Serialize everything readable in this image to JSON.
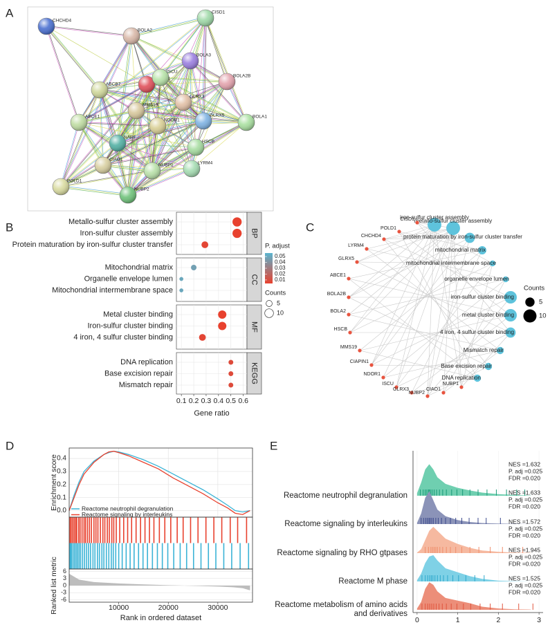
{
  "panel_labels": [
    "A",
    "B",
    "C",
    "D",
    "E"
  ],
  "network": {
    "nodes": [
      {
        "label": "CHCHD4",
        "color": "#4a6fd0"
      },
      {
        "label": "BOLA2",
        "color": "#d9b8a8"
      },
      {
        "label": "CISD1",
        "color": "#9fd9a8"
      },
      {
        "label": "BOLA3",
        "color": "#9b7fe0"
      },
      {
        "label": "BOLA2B",
        "color": "#e3a3ad"
      },
      {
        "label": "ABCB7",
        "color": "#cfd79a"
      },
      {
        "label": "CIAPIN1",
        "color": "#e0505a"
      },
      {
        "label": "ISCU",
        "color": "#b7e3a8"
      },
      {
        "label": "GLRX3",
        "color": "#e2c0a6"
      },
      {
        "label": "MMS19",
        "color": "#d7c79c"
      },
      {
        "label": "BOLA1",
        "color": "#a9e0a0"
      },
      {
        "label": "GLRX5",
        "color": "#7fb3e3"
      },
      {
        "label": "NDOR1",
        "color": "#d9cf95"
      },
      {
        "label": "ABCE1",
        "color": "#bfdca2"
      },
      {
        "label": "NARF",
        "color": "#52b0a3"
      },
      {
        "label": "HSCB",
        "color": "#a6dca0"
      },
      {
        "label": "CIAO1",
        "color": "#d8cfa0"
      },
      {
        "label": "NUBP1",
        "color": "#b9e1a9"
      },
      {
        "label": "LYRM4",
        "color": "#a5dcb2"
      },
      {
        "label": "POLD1",
        "color": "#d9dba0"
      },
      {
        "label": "NUBP2",
        "color": "#6fc27a"
      }
    ]
  },
  "cnet": {
    "genes": [
      "CISD1",
      "POLD1",
      "CHCHD4",
      "LYRM4",
      "GLRX5",
      "ABCE1",
      "BOLA2B",
      "BOLA2",
      "HSCB",
      "MMS19",
      "CIAPIN1",
      "NDOR1",
      "ISCU",
      "GLRX3",
      "NUBP2",
      "CIAO1",
      "NUBP1"
    ],
    "terms": [
      {
        "label": "iron-sulfur cluster assembly",
        "count": 11
      },
      {
        "label": "metallo-sulfur cluster assembly",
        "count": 11
      },
      {
        "label": "protein maturation by iron-sulfur cluster transfer",
        "count": 6
      },
      {
        "label": "mitochondrial matrix",
        "count": 4
      },
      {
        "label": "mitochondrial intermembrane space",
        "count": 2
      },
      {
        "label": "organelle envelope lumen",
        "count": 2
      },
      {
        "label": "iron-sulfur cluster binding",
        "count": 9
      },
      {
        "label": "metal cluster binding",
        "count": 9
      },
      {
        "label": "4 iron, 4 sulfur cluster binding",
        "count": 6
      },
      {
        "label": "Mismatch repair",
        "count": 3
      },
      {
        "label": "Base excision repair",
        "count": 3
      },
      {
        "label": "DNA replication",
        "count": 3
      }
    ],
    "gene_color": "#e8543f",
    "term_color": "#5ec3dc",
    "legend_title": "Counts",
    "legend_sizes": [
      5,
      10
    ]
  },
  "chart_data": [
    {
      "type": "dotplot",
      "x_label": "Gene ratio",
      "xlim": [
        0.06,
        0.63
      ],
      "xticks": [
        0.1,
        0.2,
        0.3,
        0.4,
        0.5,
        0.6
      ],
      "grid": true,
      "groups": [
        {
          "name": "BP",
          "categories": [
            "Metallo-sulfur cluster assembly",
            "Iron-sulfur cluster assembly",
            "Protein maturation by iron-sulfur cluster transfer"
          ],
          "values": [
            0.55,
            0.55,
            0.29
          ],
          "counts": [
            11,
            11,
            6
          ],
          "p_adjust": [
            0.004,
            0.004,
            0.006
          ]
        },
        {
          "name": "CC",
          "categories": [
            "Mitochondrial matrix",
            "Organelle envelope lumen",
            "Mitochondrial intermembrane space"
          ],
          "values": [
            0.2,
            0.1,
            0.1
          ],
          "counts": [
            4,
            2,
            2
          ],
          "p_adjust": [
            0.047,
            0.05,
            0.05
          ]
        },
        {
          "name": "MF",
          "categories": [
            "Metal cluster binding",
            "Iron-sulfur cluster binding",
            "4 iron, 4 sulfur cluster binding"
          ],
          "values": [
            0.43,
            0.43,
            0.27
          ],
          "counts": [
            9,
            9,
            6
          ],
          "p_adjust": [
            0.004,
            0.004,
            0.006
          ]
        },
        {
          "name": "KEGG",
          "categories": [
            "DNA replication",
            "Base excision repair",
            "Mismatch repair"
          ],
          "values": [
            0.5,
            0.5,
            0.5
          ],
          "counts": [
            3,
            3,
            3
          ],
          "p_adjust": [
            0.008,
            0.008,
            0.008
          ]
        }
      ],
      "color_legend": {
        "title": "P. adjust",
        "ticks": [
          0.05,
          0.04,
          0.03,
          0.02,
          0.01
        ],
        "clim": [
          0.004,
          0.056
        ],
        "colors": [
          "#e8412e",
          "#5ab4cf"
        ]
      },
      "size_legend": {
        "title": "Counts",
        "values": [
          5,
          10
        ]
      }
    },
    {
      "type": "gsea",
      "x_label": "Rank in ordered dataset",
      "y_label": "Enrichment score",
      "legend": "bottom-left",
      "grid": true,
      "x": [
        0,
        1000,
        2000,
        3000,
        5000,
        7000,
        8000,
        9000,
        10000,
        12000,
        15000,
        18000,
        21000,
        24000,
        27000,
        30000,
        32000,
        33500,
        35000,
        36500
      ],
      "series": [
        {
          "name": "Reactome neutrophil degranulation",
          "color": "#3bb3d6",
          "values": [
            0,
            0.12,
            0.22,
            0.3,
            0.38,
            0.43,
            0.445,
            0.455,
            0.45,
            0.43,
            0.39,
            0.34,
            0.28,
            0.22,
            0.16,
            0.09,
            0.04,
            0.0,
            -0.01,
            0.0
          ],
          "hits": [
            100,
            300,
            500,
            800,
            1100,
            1400,
            1700,
            2000,
            2300,
            2700,
            3100,
            3500,
            3900,
            4300,
            4800,
            5200,
            5700,
            6100,
            6600,
            7000,
            7500,
            8000,
            8500,
            8900,
            9400,
            10000,
            10700,
            11500,
            12300,
            13100,
            14000,
            14900,
            15800,
            16800,
            17800,
            18800,
            19900,
            21100,
            22400,
            23700,
            25100,
            26600,
            28100,
            29600,
            31200,
            32800,
            34500,
            36200
          ]
        },
        {
          "name": "Reactome signaling by interleukins",
          "color": "#e8412e",
          "values": [
            0,
            0.1,
            0.2,
            0.28,
            0.37,
            0.43,
            0.45,
            0.455,
            0.445,
            0.42,
            0.37,
            0.32,
            0.25,
            0.19,
            0.13,
            0.06,
            0.02,
            -0.02,
            -0.03,
            0.0
          ],
          "hits": [
            150,
            400,
            700,
            1000,
            1300,
            1500,
            1900,
            2200,
            2600,
            3000,
            3300,
            3700,
            4100,
            4500,
            5000,
            5400,
            5800,
            6300,
            6800,
            7200,
            7700,
            8100,
            8600,
            9000,
            9500,
            10200,
            11000,
            11800,
            12600,
            13500,
            14400,
            15300,
            16200,
            17100,
            18200,
            19300,
            20500,
            21800,
            23000,
            24500,
            26000,
            27600,
            29200,
            30800,
            32500,
            34000,
            35800
          ]
        }
      ],
      "xlim": [
        0,
        37000
      ],
      "xticks": [
        10000,
        20000,
        30000
      ],
      "ylim": [
        -0.05,
        0.48
      ],
      "yticks": [
        {
          "value": 0,
          "label": "0.0"
        },
        0.1,
        0.2,
        0.3,
        0.4
      ],
      "metric": {
        "y_label": "Ranked list metric",
        "color": "#bdbdbd",
        "x": [
          0,
          2000,
          5000,
          10000,
          15000,
          20000,
          25000,
          30000,
          33000,
          35000,
          36500
        ],
        "values": [
          5,
          2.5,
          1.5,
          0.9,
          0.5,
          0.2,
          -0.1,
          -0.4,
          -0.7,
          -1.1,
          -2
        ],
        "ylim": [
          -7,
          7
        ],
        "yticks": [
          -6,
          -3,
          0,
          3,
          6
        ]
      }
    },
    {
      "type": "ridge",
      "xlim": [
        -0.1,
        3.1
      ],
      "xticks": [
        0,
        1,
        2,
        3
      ],
      "categories": [
        "Reactome neutrophil degranulation",
        "Reactome signaling by interleukins",
        "Reactome signaling by RHO gtpases",
        "Reactome M phase",
        "Reactome metabolism of amino acids and derivatives"
      ],
      "annotations": [
        [
          "NES =1.632",
          "P. adj =0.025",
          "FDR =0.020"
        ],
        [
          "NES =1.633",
          "P. adj =0.025",
          "FDR =0.020"
        ],
        [
          "NES =1.572",
          "P. adj =0.025",
          "FDR =0.020"
        ],
        [
          "NES =1.945",
          "P. adj =0.025",
          "FDR =0.020"
        ],
        [
          "NES =1.525",
          "P. adj =0.025",
          "FDR =0.020"
        ]
      ],
      "density_x": [
        0,
        0.1,
        0.2,
        0.3,
        0.4,
        0.5,
        0.7,
        1.0,
        1.3,
        1.6,
        2.0,
        2.4,
        2.8
      ],
      "ridges": [
        {
          "color": "#6fcfb0",
          "rug_color": "#1a9a78",
          "density": [
            0.1,
            0.5,
            1.0,
            1.2,
            1.0,
            0.7,
            0.45,
            0.3,
            0.2,
            0.12,
            0.06,
            0.03,
            0.01
          ],
          "rug": [
            0.08,
            0.15,
            0.2,
            0.24,
            0.28,
            0.3,
            0.33,
            0.37,
            0.42,
            0.48,
            0.55,
            0.63,
            0.72,
            0.85,
            0.98,
            1.12,
            1.3,
            1.5,
            1.72,
            1.95,
            2.2,
            2.45,
            2.65
          ]
        },
        {
          "color": "#8b93b8",
          "rug_color": "#3c4a8c",
          "density": [
            0.05,
            0.4,
            1.0,
            1.25,
            0.9,
            0.55,
            0.3,
            0.15,
            0.08,
            0.04,
            0.02,
            0.01,
            0
          ],
          "rug": [
            0.1,
            0.16,
            0.21,
            0.25,
            0.29,
            0.32,
            0.36,
            0.4,
            0.46,
            0.52,
            0.6,
            0.7,
            0.82,
            0.95,
            1.1,
            1.28,
            1.5,
            1.7,
            2.05
          ]
        },
        {
          "color": "#f6b9a0",
          "rug_color": "#ef8e6c",
          "density": [
            0.02,
            0.15,
            0.5,
            0.85,
            1.0,
            0.85,
            0.55,
            0.35,
            0.2,
            0.1,
            0.05,
            0.02,
            0.01
          ],
          "rug": [
            0.2,
            0.28,
            0.34,
            0.38,
            0.42,
            0.46,
            0.5,
            0.56,
            0.63,
            0.72,
            0.82,
            0.95,
            1.1,
            1.3,
            1.52,
            1.8,
            2.1,
            2.6
          ]
        },
        {
          "color": "#7fd1e6",
          "rug_color": "#2ea8cc",
          "density": [
            0.05,
            0.3,
            0.7,
            0.95,
            1.0,
            0.8,
            0.5,
            0.35,
            0.2,
            0.1,
            0.03,
            0.01,
            0
          ],
          "rug": [
            0.12,
            0.2,
            0.26,
            0.31,
            0.35,
            0.39,
            0.44,
            0.5,
            0.57,
            0.65,
            0.75,
            0.88,
            1.02,
            1.2,
            1.42,
            1.65
          ]
        },
        {
          "color": "#ec8e79",
          "rug_color": "#e0553e",
          "density": [
            0.05,
            0.3,
            0.8,
            1.05,
            0.95,
            0.7,
            0.45,
            0.35,
            0.25,
            0.12,
            0.05,
            0.02,
            0.01
          ],
          "rug": [
            0.12,
            0.2,
            0.26,
            0.31,
            0.36,
            0.41,
            0.47,
            0.54,
            0.62,
            0.72,
            0.84,
            0.98,
            1.14,
            1.32,
            1.55,
            1.8,
            2.1,
            2.5,
            2.85
          ]
        }
      ]
    }
  ]
}
